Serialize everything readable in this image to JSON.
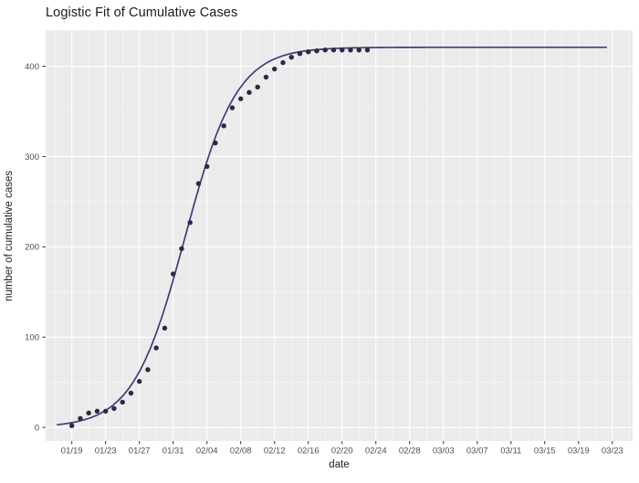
{
  "figure": {
    "title": "Logistic Fit of Cumulative Cases"
  },
  "chart_data": {
    "type": "scatter",
    "title": "Logistic Fit of Cumulative Cases",
    "xlabel": "date",
    "ylabel": "number of cumulative cases",
    "legend": "none",
    "grid": true,
    "panel_bg": "#ebebeb",
    "grid_color": "#ffffff",
    "axis_text_color": "#4d4d4d",
    "tick_mark_color": "#333333",
    "x_tick_labels": [
      "01/19",
      "01/23",
      "01/27",
      "01/31",
      "02/04",
      "02/08",
      "02/12",
      "02/16",
      "02/20",
      "02/24",
      "02/28",
      "03/03",
      "03/07",
      "03/11",
      "03/15",
      "03/19",
      "03/23"
    ],
    "x_tick_step_days": 4,
    "y_ticks": [
      0,
      100,
      200,
      300,
      400
    ],
    "y_minor_ticks": [
      50,
      150,
      250,
      350
    ],
    "xlim_panel_days": [
      -3.1,
      66.4
    ],
    "ylim_panel": [
      -15,
      440
    ],
    "series": [
      {
        "name": "observed cumulative cases",
        "type": "scatter",
        "color": "#2b2a44",
        "dates": [
          "01/19",
          "01/20",
          "01/21",
          "01/22",
          "01/23",
          "01/24",
          "01/25",
          "01/26",
          "01/27",
          "01/28",
          "01/29",
          "01/30",
          "01/31",
          "02/01",
          "02/02",
          "02/03",
          "02/04",
          "02/05",
          "02/06",
          "02/07",
          "02/08",
          "02/09",
          "02/10",
          "02/11",
          "02/12",
          "02/13",
          "02/14",
          "02/15",
          "02/16",
          "02/17",
          "02/18",
          "02/19",
          "02/20",
          "02/21",
          "02/22",
          "02/23"
        ],
        "days_from_01_19": [
          0,
          1,
          2,
          3,
          4,
          5,
          6,
          7,
          8,
          9,
          10,
          11,
          12,
          13,
          14,
          15,
          16,
          17,
          18,
          19,
          20,
          21,
          22,
          23,
          24,
          25,
          26,
          27,
          28,
          29,
          30,
          31,
          32,
          33,
          34,
          35
        ],
        "values": [
          2,
          10,
          16,
          18,
          18,
          21,
          28,
          38,
          51,
          64,
          88,
          110,
          170,
          198,
          227,
          270,
          289,
          315,
          334,
          354,
          364,
          371,
          377,
          388,
          397,
          404,
          410,
          414,
          416,
          417,
          418,
          418,
          418,
          418,
          418,
          418
        ]
      },
      {
        "name": "logistic fit",
        "type": "line",
        "color": "#3e3d7a",
        "logistic_model": {
          "K": 421,
          "r": 0.326,
          "t0_day": 13.4,
          "day_range": [
            -1.7,
            63.3
          ]
        }
      }
    ]
  }
}
